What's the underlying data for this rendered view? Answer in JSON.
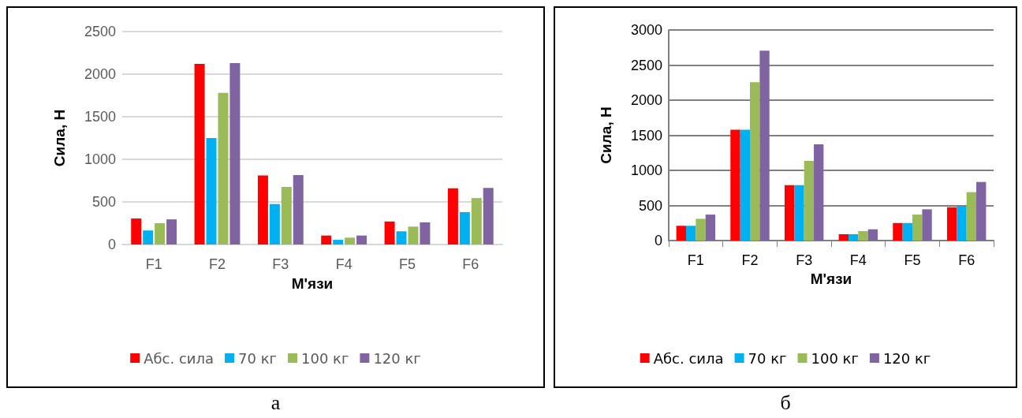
{
  "chart_data": [
    {
      "type": "bar",
      "xlabel": "М'язи",
      "ylabel": "Сила, Н",
      "categories": [
        "F1",
        "F2",
        "F3",
        "F4",
        "F5",
        "F6"
      ],
      "ylim": [
        0,
        2500
      ],
      "yticks": [
        0,
        500,
        1000,
        1500,
        2000,
        2500
      ],
      "grid": "y",
      "legend": "bottom",
      "annotations": [
        "а"
      ],
      "series": [
        {
          "name": "Абс. сила",
          "color": "#ff0000",
          "values": [
            305,
            2120,
            810,
            105,
            270,
            660
          ]
        },
        {
          "name": "70 кг",
          "color": "#00b0f0",
          "values": [
            165,
            1250,
            475,
            55,
            155,
            380
          ]
        },
        {
          "name": "100 кг",
          "color": "#9bbb59",
          "values": [
            250,
            1780,
            675,
            80,
            210,
            545
          ]
        },
        {
          "name": "120 кг",
          "color": "#8064a2",
          "values": [
            295,
            2130,
            815,
            105,
            260,
            665
          ]
        }
      ]
    },
    {
      "type": "bar",
      "xlabel": "М'язи",
      "ylabel": "Сила, Н",
      "categories": [
        "F1",
        "F2",
        "F3",
        "F4",
        "F5",
        "F6"
      ],
      "ylim": [
        0,
        3000
      ],
      "yticks": [
        0,
        500,
        1000,
        1500,
        2000,
        2500,
        3000
      ],
      "grid": "y",
      "legend": "bottom",
      "annotations": [
        "б"
      ],
      "series": [
        {
          "name": "Абс. сила",
          "color": "#ff0000",
          "values": [
            210,
            1580,
            790,
            90,
            250,
            475
          ]
        },
        {
          "name": "70 кг",
          "color": "#00b0f0",
          "values": [
            210,
            1580,
            790,
            90,
            250,
            490
          ]
        },
        {
          "name": "100 кг",
          "color": "#9bbb59",
          "values": [
            310,
            2255,
            1135,
            135,
            370,
            690
          ]
        },
        {
          "name": "120 кг",
          "color": "#8064a2",
          "values": [
            370,
            2705,
            1370,
            160,
            445,
            835
          ]
        }
      ]
    }
  ]
}
